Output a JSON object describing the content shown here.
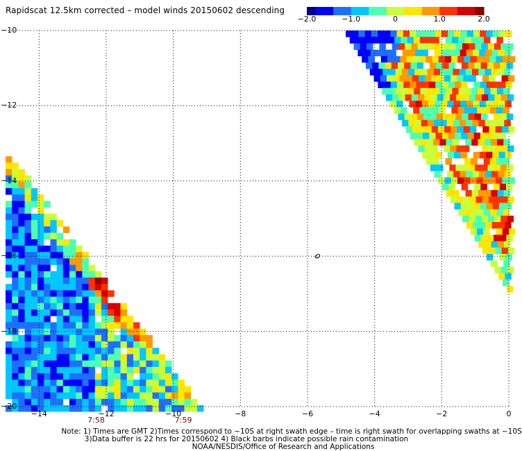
{
  "title": "Rapidscat 12.5km corrected – model winds 20150602 descending",
  "colorbar": {
    "tick_labels": [
      "−2.0",
      "−1.0",
      "0",
      "1.0",
      "2.0"
    ],
    "ticks": [
      -2.0,
      -1.0,
      0,
      1.0,
      2.0
    ],
    "range": [
      -2.0,
      2.0
    ]
  },
  "map": {
    "x_tick_labels": [
      "−14",
      "−12",
      "−10",
      "−8",
      "−6",
      "−4",
      "−2",
      "0"
    ],
    "x_ticks": [
      -14,
      -12,
      -10,
      -8,
      -6,
      -4,
      -2,
      0
    ],
    "y_tick_labels": [
      "−10",
      "−12",
      "−14",
      "−16",
      "−18",
      "−20"
    ],
    "y_ticks": [
      -10,
      -12,
      -14,
      -16,
      -18,
      -20
    ],
    "x_range": [
      -15,
      0
    ],
    "y_range": [
      -20,
      -10
    ],
    "gridlines": true,
    "time_labels": [
      {
        "text": "7:58",
        "lon": -12.3
      },
      {
        "text": "7:59",
        "lon": -9.7
      }
    ],
    "colors": {
      "scale": [
        "#00008f",
        "#0000ff",
        "#1f6fff",
        "#00c8ff",
        "#4dffb0",
        "#c8ff3a",
        "#ffe600",
        "#ff9900",
        "#ff3300",
        "#d80000",
        "#8f0000"
      ]
    }
  },
  "notes": {
    "line1": "Note: 1) Times are GMT 2)Times correspond to ~10S at right swath edge – time is right swath for overlapping swaths at ~10S",
    "line2": "3)Data buffer is 22 hrs for 20150602 4) Black barbs indicate possible rain contamination",
    "line3": "NOAA/NESDIS/Office of Research and Applications"
  }
}
